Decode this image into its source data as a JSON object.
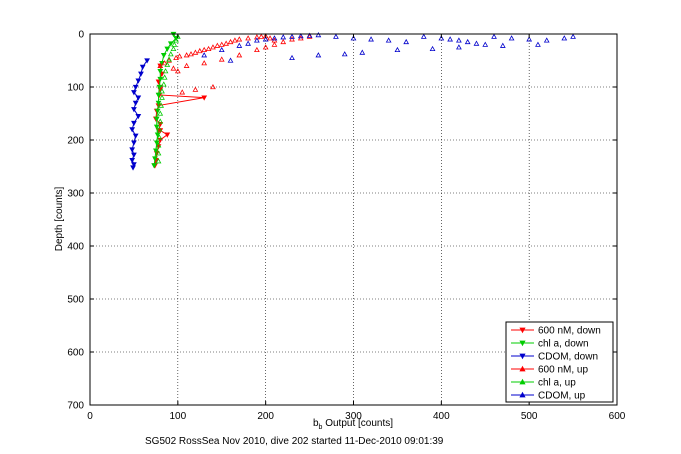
{
  "chart_data": {
    "type": "scatter",
    "title": "",
    "xlabel_base": "b",
    "xlabel_sub": "b",
    "xlabel_rest": " Output [counts]",
    "ylabel": "Depth [counts]",
    "caption": "SG502 RossSea Nov 2010, dive 202 started 11-Dec-2010 09:01:39",
    "xlim": [
      0,
      600
    ],
    "ylim": [
      0,
      700
    ],
    "y_reversed": true,
    "grid": true,
    "x_ticks": [
      "0",
      "100",
      "200",
      "300",
      "400",
      "500",
      "600"
    ],
    "y_ticks": [
      "0",
      "100",
      "200",
      "300",
      "400",
      "500",
      "600",
      "700"
    ],
    "legend_position": "bottom-right",
    "series": [
      {
        "name": "600 nM, down",
        "color": "#ff0000",
        "marker": "triangle-down",
        "style": "line",
        "x": [
          80,
          82,
          78,
          80,
          80,
          79,
          130,
          78,
          76,
          75,
          80,
          78,
          80,
          88,
          80,
          78,
          76,
          75,
          74
        ],
        "y": [
          60,
          75,
          90,
          100,
          105,
          115,
          120,
          135,
          145,
          160,
          170,
          182,
          182,
          190,
          200,
          212,
          225,
          238,
          248
        ]
      },
      {
        "name": "chl a, down",
        "color": "#00cc00",
        "marker": "triangle-down",
        "style": "line",
        "x": [
          95,
          98,
          92,
          88,
          84,
          82,
          80,
          80,
          79,
          78,
          78,
          77,
          76,
          76,
          77,
          76,
          75,
          74,
          73
        ],
        "y": [
          0,
          8,
          18,
          28,
          40,
          55,
          70,
          85,
          100,
          115,
          130,
          145,
          160,
          175,
          190,
          205,
          220,
          235,
          248
        ]
      },
      {
        "name": "CDOM, down",
        "color": "#0000cc",
        "marker": "triangle-down",
        "style": "line",
        "x": [
          65,
          60,
          58,
          55,
          52,
          50,
          55,
          52,
          50,
          55,
          50,
          48,
          52,
          50,
          48,
          50,
          48,
          50,
          49
        ],
        "y": [
          50,
          62,
          75,
          88,
          100,
          110,
          120,
          130,
          142,
          155,
          168,
          180,
          192,
          205,
          218,
          228,
          238,
          246,
          252
        ]
      },
      {
        "name": "600 nM, up",
        "color": "#ff0000",
        "marker": "triangle-up",
        "style": "scatter",
        "x": [
          80,
          85,
          90,
          98,
          102,
          110,
          115,
          120,
          125,
          130,
          135,
          140,
          145,
          150,
          155,
          160,
          165,
          170,
          180,
          190,
          195,
          200,
          205,
          210,
          220,
          230,
          240,
          250,
          110,
          130,
          150,
          170,
          190,
          200,
          210,
          95,
          100,
          105,
          120,
          140
        ],
        "y": [
          60,
          55,
          50,
          45,
          42,
          40,
          38,
          35,
          32,
          30,
          28,
          25,
          22,
          20,
          18,
          15,
          12,
          10,
          8,
          6,
          5,
          4,
          8,
          12,
          15,
          10,
          8,
          5,
          60,
          55,
          48,
          40,
          30,
          25,
          20,
          65,
          70,
          110,
          105,
          100
        ]
      },
      {
        "name": "chl a, up",
        "color": "#00cc00",
        "marker": "triangle-up",
        "style": "scatter",
        "x": [
          100,
          98,
          96,
          95,
          92,
          90,
          88,
          86,
          85,
          84,
          82,
          82,
          81,
          80,
          80,
          79,
          79,
          78,
          78,
          78
        ],
        "y": [
          5,
          12,
          20,
          28,
          38,
          48,
          58,
          70,
          82,
          95,
          108,
          120,
          135,
          150,
          165,
          180,
          195,
          210,
          225,
          240
        ]
      },
      {
        "name": "CDOM, up",
        "color": "#0000cc",
        "marker": "triangle-up",
        "style": "scatter",
        "x": [
          130,
          150,
          170,
          180,
          190,
          200,
          210,
          220,
          230,
          240,
          250,
          260,
          280,
          300,
          320,
          340,
          360,
          380,
          400,
          410,
          420,
          430,
          440,
          450,
          460,
          480,
          500,
          520,
          540,
          550,
          230,
          260,
          290,
          310,
          350,
          390,
          420,
          470,
          510,
          160
        ],
        "y": [
          40,
          30,
          22,
          18,
          12,
          10,
          8,
          6,
          5,
          4,
          3,
          2,
          5,
          8,
          10,
          12,
          15,
          5,
          8,
          10,
          12,
          15,
          18,
          20,
          5,
          8,
          10,
          12,
          8,
          5,
          45,
          40,
          38,
          35,
          30,
          28,
          25,
          22,
          20,
          50
        ]
      }
    ]
  }
}
